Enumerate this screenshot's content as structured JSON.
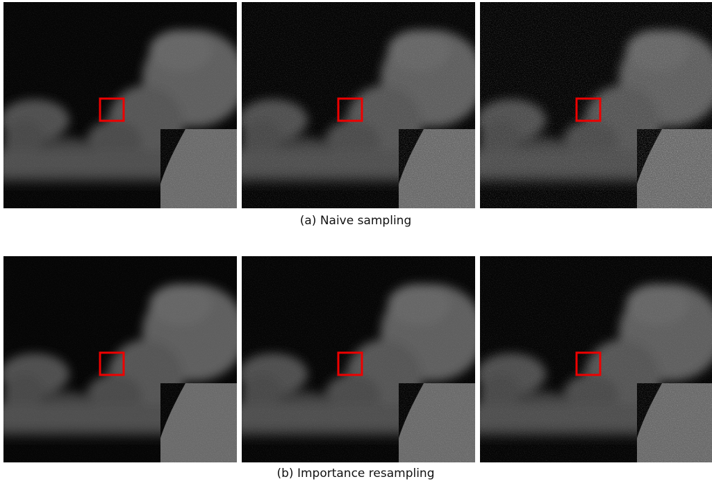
{
  "figure": {
    "rows": [
      {
        "caption": "(a) Naive sampling"
      },
      {
        "caption": "(b) Importance resampling"
      }
    ]
  }
}
